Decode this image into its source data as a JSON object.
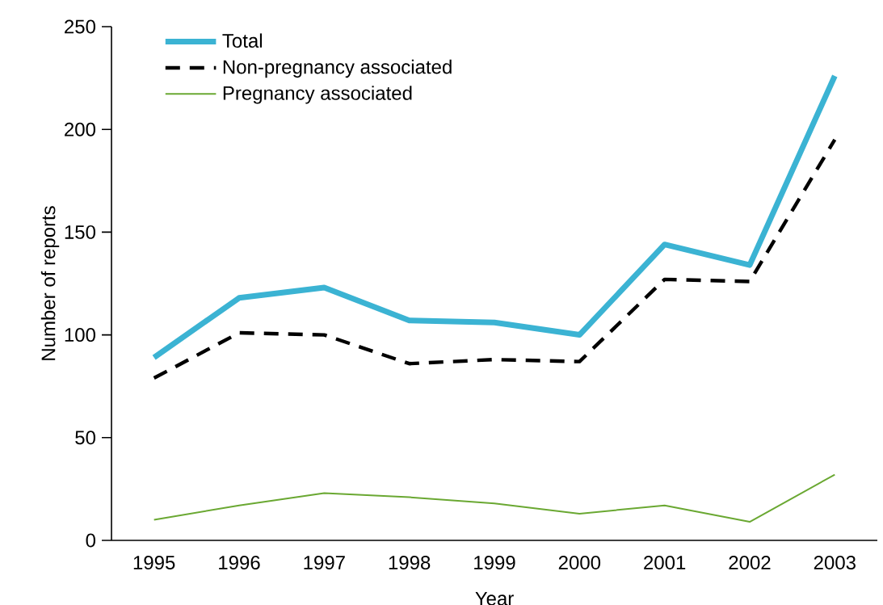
{
  "chart_data": {
    "type": "line",
    "xlabel": "Year",
    "ylabel": "Number of reports",
    "categories": [
      "1995",
      "1996",
      "1997",
      "1998",
      "1999",
      "2000",
      "2001",
      "2002",
      "2003"
    ],
    "series": [
      {
        "name": "Total",
        "color": "#3bb3d3",
        "line_style": "solid",
        "values": [
          89,
          118,
          123,
          107,
          106,
          100,
          144,
          134,
          226
        ]
      },
      {
        "name": "Non-pregnancy associated",
        "color": "#000000",
        "line_style": "dashed",
        "values": [
          79,
          101,
          100,
          86,
          88,
          87,
          127,
          126,
          195
        ]
      },
      {
        "name": "Pregnancy associated",
        "color": "#6aa832",
        "line_style": "solid",
        "values": [
          10,
          17,
          23,
          21,
          18,
          13,
          17,
          9,
          32
        ]
      }
    ],
    "ylim": [
      0,
      250
    ],
    "yticks": [
      0,
      50,
      100,
      150,
      200,
      250
    ],
    "grid": false,
    "legend": "top left",
    "marker": "none"
  }
}
